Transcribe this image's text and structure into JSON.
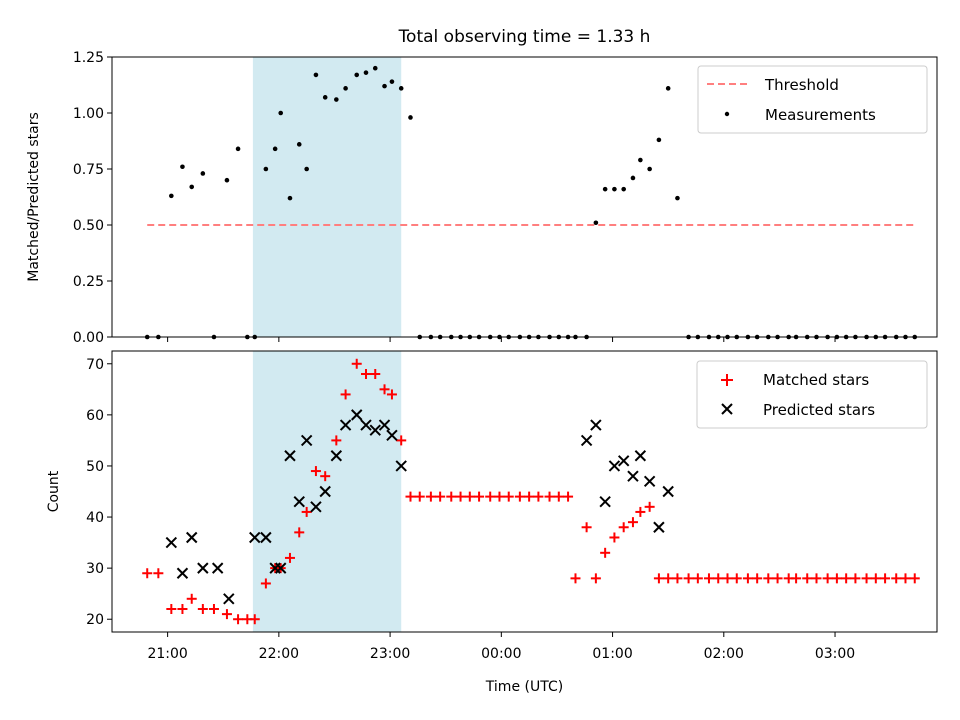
{
  "chart_data": [
    {
      "type": "scatter",
      "title": "Total observing time = 1.33 h",
      "xlabel": "",
      "ylabel": "Matched/Predicted stars",
      "xlim": [
        "20:30",
        "03:55"
      ],
      "ylim": [
        0,
        1.25
      ],
      "yticks": [
        "0.00",
        "0.25",
        "0.50",
        "0.75",
        "1.00",
        "1.25"
      ],
      "highlight_band": {
        "x": [
          "21:46",
          "23:06"
        ],
        "color": "#add8e6"
      },
      "legend": {
        "position": "upper right",
        "entries": [
          "Threshold",
          "Measurements"
        ]
      },
      "series": [
        {
          "name": "Threshold",
          "kind": "dashed-line",
          "color": "#ff7f7f",
          "x": [
            "20:49",
            "03:43"
          ],
          "y": [
            0.5,
            0.5
          ]
        },
        {
          "name": "Measurements",
          "kind": "dots",
          "color": "#000000",
          "x": [
            "20:49",
            "20:55",
            "21:02",
            "21:08",
            "21:13",
            "21:19",
            "21:25",
            "21:32",
            "21:38",
            "21:43",
            "21:47",
            "21:53",
            "21:58",
            "22:01",
            "22:06",
            "22:11",
            "22:15",
            "22:20",
            "22:25",
            "22:31",
            "22:36",
            "22:42",
            "22:47",
            "22:52",
            "22:57",
            "23:01",
            "23:06",
            "23:11",
            "23:16",
            "23:22",
            "23:27",
            "23:33",
            "23:38",
            "23:43",
            "23:48",
            "23:54",
            "23:59",
            "00:04",
            "00:10",
            "00:15",
            "00:20",
            "00:26",
            "00:31",
            "00:36",
            "00:40",
            "00:46",
            "00:51",
            "00:56",
            "01:01",
            "01:06",
            "01:11",
            "01:15",
            "01:20",
            "01:25",
            "01:30",
            "01:35",
            "01:41",
            "01:46",
            "01:52",
            "01:57",
            "02:02",
            "02:07",
            "02:13",
            "02:18",
            "02:24",
            "02:29",
            "02:35",
            "02:39",
            "02:45",
            "02:50",
            "02:56",
            "03:01",
            "03:06",
            "03:11",
            "03:17",
            "03:22",
            "03:27",
            "03:33",
            "03:38",
            "03:43"
          ],
          "y": [
            0,
            0,
            0.63,
            0.76,
            0.67,
            0.73,
            0,
            0.7,
            0.84,
            0,
            0,
            0.75,
            0.84,
            1.0,
            0.62,
            0.86,
            0.75,
            1.17,
            1.07,
            1.06,
            1.11,
            1.17,
            1.18,
            1.2,
            1.12,
            1.14,
            1.11,
            0.98,
            0,
            0,
            0,
            0,
            0,
            0,
            0,
            0,
            0,
            0,
            0,
            0,
            0,
            0,
            0,
            0,
            0,
            0,
            0.51,
            0.66,
            0.66,
            0.66,
            0.71,
            0.79,
            0.75,
            0.88,
            1.11,
            0.62,
            0,
            0,
            0,
            0,
            0,
            0,
            0,
            0,
            0,
            0,
            0,
            0,
            0,
            0,
            0,
            0,
            0,
            0,
            0,
            0,
            0,
            0,
            0,
            0
          ]
        }
      ]
    },
    {
      "type": "scatter",
      "title": "",
      "xlabel": "Time (UTC)",
      "ylabel": "Count",
      "xlim": [
        "20:30",
        "03:55"
      ],
      "ylim": [
        17.5,
        72.5
      ],
      "yticks": [
        "20",
        "30",
        "40",
        "50",
        "60",
        "70"
      ],
      "xticks": [
        "21:00",
        "22:00",
        "23:00",
        "00:00",
        "01:00",
        "02:00",
        "03:00"
      ],
      "highlight_band": {
        "x": [
          "21:46",
          "23:06"
        ],
        "color": "#add8e6"
      },
      "legend": {
        "position": "upper right",
        "entries": [
          "Matched stars",
          "Predicted stars"
        ]
      },
      "series": [
        {
          "name": "Matched stars",
          "marker": "+",
          "color": "#ff0000",
          "x": [
            "20:49",
            "20:55",
            "21:02",
            "21:08",
            "21:13",
            "21:19",
            "21:25",
            "21:32",
            "21:38",
            "21:43",
            "21:47",
            "21:53",
            "21:58",
            "22:01",
            "22:06",
            "22:11",
            "22:15",
            "22:20",
            "22:25",
            "22:31",
            "22:36",
            "22:42",
            "22:47",
            "22:52",
            "22:57",
            "23:01",
            "23:06",
            "23:11",
            "23:16",
            "23:22",
            "23:27",
            "23:33",
            "23:38",
            "23:43",
            "23:48",
            "23:54",
            "23:59",
            "00:04",
            "00:10",
            "00:15",
            "00:20",
            "00:26",
            "00:31",
            "00:36",
            "00:40",
            "00:46",
            "00:51",
            "00:56",
            "01:01",
            "01:06",
            "01:11",
            "01:15",
            "01:20",
            "01:25",
            "01:30",
            "01:35",
            "01:41",
            "01:46",
            "01:52",
            "01:57",
            "02:02",
            "02:07",
            "02:13",
            "02:18",
            "02:24",
            "02:29",
            "02:35",
            "02:39",
            "02:45",
            "02:50",
            "02:56",
            "03:01",
            "03:06",
            "03:11",
            "03:17",
            "03:22",
            "03:27",
            "03:33",
            "03:38",
            "03:43"
          ],
          "y": [
            29,
            29,
            22,
            22,
            24,
            22,
            22,
            21,
            20,
            20,
            20,
            27,
            30,
            30,
            32,
            37,
            41,
            49,
            48,
            55,
            64,
            70,
            68,
            68,
            65,
            64,
            55,
            44,
            44,
            44,
            44,
            44,
            44,
            44,
            44,
            44,
            44,
            44,
            44,
            44,
            44,
            44,
            44,
            44,
            28,
            38,
            28,
            33,
            36,
            38,
            39,
            41,
            42,
            28,
            28,
            28,
            28,
            28,
            28,
            28,
            28,
            28,
            28,
            28,
            28,
            28,
            28,
            28,
            28,
            28,
            28,
            28,
            28,
            28,
            28,
            28,
            28,
            28,
            28,
            28
          ]
        },
        {
          "name": "Predicted stars",
          "marker": "x",
          "color": "#000000",
          "x": [
            "21:02",
            "21:08",
            "21:13",
            "21:19",
            "21:27",
            "21:33",
            "21:47",
            "21:53",
            "21:58",
            "22:01",
            "22:06",
            "22:11",
            "22:15",
            "22:20",
            "22:25",
            "22:31",
            "22:36",
            "22:42",
            "22:47",
            "22:52",
            "22:57",
            "23:01",
            "23:06",
            "00:46",
            "00:51",
            "00:56",
            "01:01",
            "01:06",
            "01:11",
            "01:15",
            "01:20",
            "01:25",
            "01:30"
          ],
          "y": [
            35,
            29,
            36,
            30,
            30,
            24,
            36,
            36,
            30,
            30,
            52,
            43,
            55,
            42,
            45,
            52,
            58,
            60,
            58,
            57,
            58,
            56,
            50,
            55,
            58,
            43,
            50,
            51,
            48,
            52,
            47,
            38,
            45
          ]
        }
      ]
    }
  ]
}
